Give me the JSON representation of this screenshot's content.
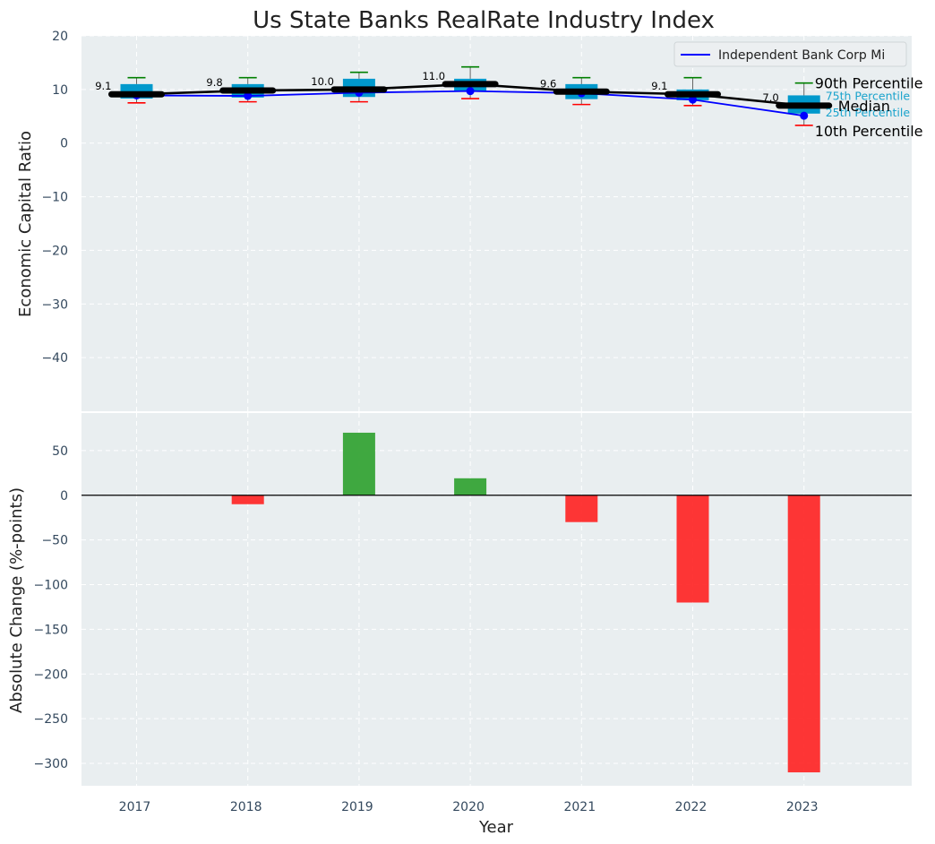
{
  "chart_data": [
    {
      "type": "box",
      "title": "Us State Banks RealRate Industry Index",
      "ylabel": "Economic Capital Ratio",
      "ylim": [
        -50,
        20
      ],
      "yticks": [
        20,
        10,
        0,
        -10,
        -20,
        -30,
        -40
      ],
      "yticklabels": [
        "20",
        "10",
        "0",
        "−10",
        "−20",
        "−30",
        "−40"
      ],
      "categories": [
        "2017",
        "2018",
        "2019",
        "2020",
        "2021",
        "2022",
        "2023"
      ],
      "p10": [
        7.5,
        7.7,
        7.7,
        8.3,
        7.2,
        7.0,
        3.3
      ],
      "p25": [
        8.3,
        8.5,
        8.6,
        9.6,
        8.2,
        8.0,
        5.5
      ],
      "median": [
        9.1,
        9.8,
        10.0,
        11.0,
        9.6,
        9.1,
        7.0
      ],
      "median_labels": [
        "9.1",
        "9.8",
        "10.0",
        "11.0",
        "9.6",
        "9.1",
        "7.0"
      ],
      "p75": [
        11.0,
        11.0,
        12.0,
        12.0,
        11.0,
        10.0,
        8.9
      ],
      "p90": [
        12.2,
        12.2,
        13.2,
        14.2,
        12.2,
        12.2,
        11.2
      ],
      "bank_series": {
        "name": "Independent Bank Corp Mi",
        "values": [
          8.9,
          8.8,
          9.4,
          9.7,
          9.3,
          8.1,
          5.1
        ],
        "color": "#0000ff"
      },
      "annotations": {
        "p90": "90th Percentile",
        "p75": "75th Percentile",
        "median": "Median",
        "p25": "25th Percentile",
        "p10": "10th Percentile"
      },
      "colors": {
        "box": "#0099cc",
        "median_line": "#000000",
        "p90_cap": "#008000",
        "p10_cap": "#ff0000",
        "annotation_small": "#1aa3cc"
      },
      "legend_position": "top-right"
    },
    {
      "type": "bar",
      "ylabel": "Absolute Change (%-points)",
      "xlabel": "Year",
      "ylim": [
        -325,
        92
      ],
      "yticks": [
        50,
        0,
        -50,
        -100,
        -150,
        -200,
        -250,
        -300
      ],
      "yticklabels": [
        "50",
        "0",
        "−50",
        "−100",
        "−150",
        "−200",
        "−250",
        "−300"
      ],
      "categories": [
        "2017",
        "2018",
        "2019",
        "2020",
        "2021",
        "2022",
        "2023"
      ],
      "values": [
        0,
        -10,
        70,
        19,
        -30,
        -120,
        -310
      ],
      "colors": {
        "positive": "#2ca02c",
        "negative": "#ff2020"
      }
    }
  ]
}
